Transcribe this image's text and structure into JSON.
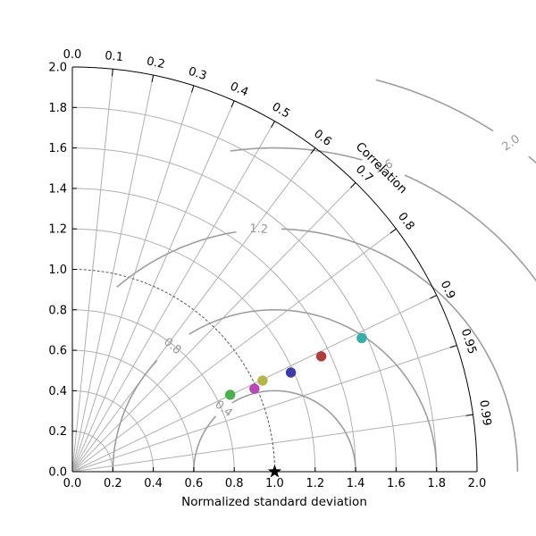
{
  "chart_data": {
    "type": "scatter",
    "subtype": "taylor-diagram",
    "title": "",
    "xlabel": "Normalized standard deviation",
    "ylabel": "",
    "arc_label": "Correlation",
    "xlim": [
      0,
      2
    ],
    "ylim": [
      0,
      2
    ],
    "x_ticks": [
      "0.0",
      "0.2",
      "0.4",
      "0.6",
      "0.8",
      "1.0",
      "1.2",
      "1.4",
      "1.6",
      "1.8",
      "2.0"
    ],
    "y_ticks": [
      "0.0",
      "0.2",
      "0.4",
      "0.6",
      "0.8",
      "1.0",
      "1.2",
      "1.4",
      "1.6",
      "1.8",
      "2.0"
    ],
    "correlation_ticks": [
      "0.0",
      "0.1",
      "0.2",
      "0.3",
      "0.4",
      "0.5",
      "0.6",
      "0.7",
      "0.8",
      "0.9",
      "0.95",
      "0.99"
    ],
    "rms_contours": [
      "0.4",
      "0.8",
      "1.2",
      "1.6",
      "2.0"
    ],
    "reference": {
      "std": 1.0,
      "marker": "star"
    },
    "reference_arc_std": 1.0,
    "grid": true,
    "points": [
      {
        "x": 0.78,
        "y": 0.38,
        "color": "#4caf4c"
      },
      {
        "x": 0.9,
        "y": 0.41,
        "color": "#b847b8"
      },
      {
        "x": 0.94,
        "y": 0.45,
        "color": "#b5b54a"
      },
      {
        "x": 1.08,
        "y": 0.49,
        "color": "#3b3bab"
      },
      {
        "x": 1.23,
        "y": 0.57,
        "color": "#b03c3c"
      },
      {
        "x": 1.43,
        "y": 0.66,
        "color": "#33b0aa"
      }
    ]
  }
}
